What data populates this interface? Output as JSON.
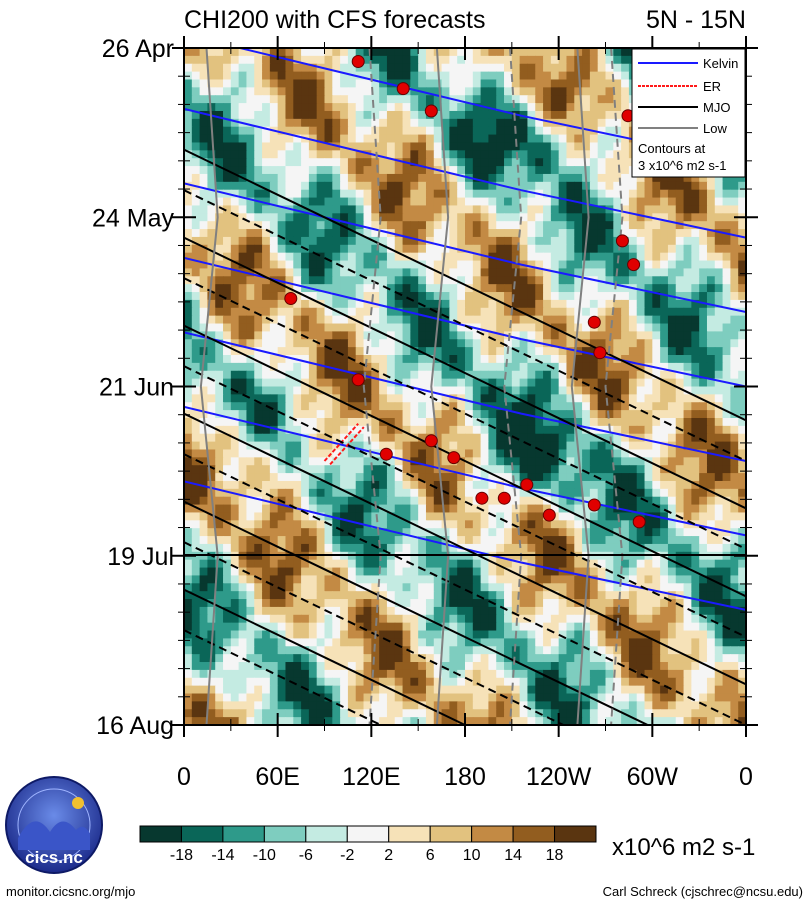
{
  "header": {
    "title": "CHI200 with CFS forecasts",
    "region": "5N - 15N"
  },
  "chart_data": {
    "type": "heatmap",
    "title": "CHI200 with CFS forecasts",
    "subtitle": "5N - 15N",
    "xlabel": "",
    "ylabel": "",
    "x_ticks": [
      "0",
      "60E",
      "120E",
      "180",
      "120W",
      "60W",
      "0"
    ],
    "y_ticks": [
      "26 Apr",
      "24 May",
      "21 Jun",
      "19 Jul",
      "16 Aug"
    ],
    "xlim": [
      0,
      360
    ],
    "forecast_start": "19 Jul",
    "legend": {
      "placement": "top-right",
      "entries": [
        {
          "name": "Kelvin",
          "color": "#1a1aff"
        },
        {
          "name": "ER",
          "color": "#ff1a1a"
        },
        {
          "name": "MJO",
          "color": "#000000"
        },
        {
          "name": "Low",
          "color": "#808080"
        }
      ],
      "note_line1": "Contours at",
      "note_line2": "3 x10^6 m2 s-1"
    },
    "colorbar": {
      "labels": [
        "-18",
        "-14",
        "-10",
        "-6",
        "-2",
        "2",
        "6",
        "10",
        "14",
        "18"
      ],
      "colors": [
        "#07382f",
        "#0a6658",
        "#2e9a8a",
        "#7ecdbf",
        "#c4ebe2",
        "#f5f5f5",
        "#f6e2b8",
        "#e2c27f",
        "#c38a44",
        "#925d1f",
        "#5a3510"
      ],
      "units": "x10^6 m2 s-1"
    }
  },
  "logo": {
    "text": "cics.nc",
    "ring_text": "Cooperative Institute for Climate and Satellites"
  },
  "footer": {
    "left": "monitor.cicsnc.org/mjo",
    "right": "Carl Schreck (cjschrec@ncsu.edu)"
  }
}
